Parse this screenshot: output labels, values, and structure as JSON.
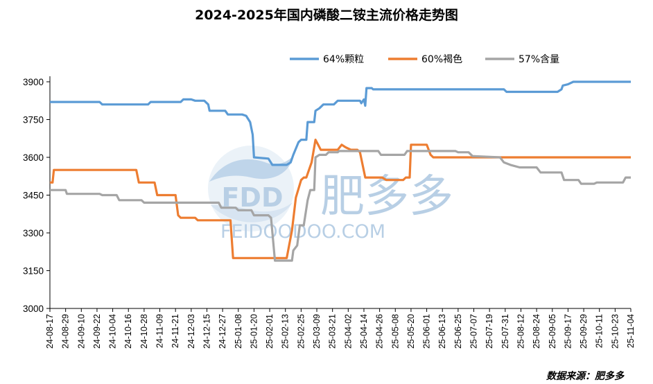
{
  "chart_data": {
    "type": "line",
    "title": "2024-2025年国内磷酸二铵主流价格走势图",
    "source": "数据来源：肥多多",
    "ylim": [
      3000,
      3900
    ],
    "yticks": [
      3000,
      3150,
      3300,
      3450,
      3600,
      3750,
      3900
    ],
    "x_range": [
      "24-08-17",
      "25-11-04"
    ],
    "xticks": [
      "24-08-17",
      "24-08-29",
      "24-09-10",
      "24-09-22",
      "24-10-04",
      "24-10-16",
      "24-10-28",
      "24-11-09",
      "24-11-21",
      "24-12-03",
      "24-12-15",
      "24-12-27",
      "25-01-08",
      "25-01-20",
      "25-02-01",
      "25-02-13",
      "25-02-25",
      "25-03-09",
      "25-03-21",
      "25-04-02",
      "25-04-14",
      "25-04-26",
      "25-05-08",
      "25-05-20",
      "25-06-01",
      "25-06-13",
      "25-06-25",
      "25-07-07",
      "25-07-19",
      "25-07-31",
      "25-08-12",
      "25-08-24",
      "25-09-05",
      "25-09-17",
      "25-09-29",
      "25-10-11",
      "25-10-23",
      "25-11-04"
    ],
    "grid": false,
    "legend_position": "top-right",
    "series": [
      {
        "name": "64%颗粒",
        "color": "#5b9bd5",
        "points": [
          [
            "2024-08-17",
            3820
          ],
          [
            "2024-09-24",
            3820
          ],
          [
            "2024-09-26",
            3810
          ],
          [
            "2024-10-31",
            3810
          ],
          [
            "2024-11-02",
            3820
          ],
          [
            "2024-11-25",
            3820
          ],
          [
            "2024-11-27",
            3830
          ],
          [
            "2024-12-03",
            3830
          ],
          [
            "2024-12-06",
            3825
          ],
          [
            "2024-12-13",
            3825
          ],
          [
            "2024-12-16",
            3810
          ],
          [
            "2024-12-17",
            3785
          ],
          [
            "2024-12-29",
            3785
          ],
          [
            "2024-12-31",
            3770
          ],
          [
            "2025-01-11",
            3770
          ],
          [
            "2025-01-14",
            3765
          ],
          [
            "2025-01-17",
            3740
          ],
          [
            "2025-01-19",
            3690
          ],
          [
            "2025-01-20",
            3600
          ],
          [
            "2025-01-31",
            3595
          ],
          [
            "2025-02-03",
            3570
          ],
          [
            "2025-02-14",
            3570
          ],
          [
            "2025-02-17",
            3580
          ],
          [
            "2025-02-19",
            3610
          ],
          [
            "2025-02-23",
            3660
          ],
          [
            "2025-02-25",
            3670
          ],
          [
            "2025-03-01",
            3670
          ],
          [
            "2025-03-02",
            3740
          ],
          [
            "2025-03-07",
            3740
          ],
          [
            "2025-03-08",
            3785
          ],
          [
            "2025-03-11",
            3795
          ],
          [
            "2025-03-14",
            3810
          ],
          [
            "2025-03-22",
            3810
          ],
          [
            "2025-03-25",
            3825
          ],
          [
            "2025-04-11",
            3825
          ],
          [
            "2025-04-12",
            3815
          ],
          [
            "2025-04-14",
            3830
          ],
          [
            "2025-04-15",
            3805
          ],
          [
            "2025-04-16",
            3875
          ],
          [
            "2025-04-20",
            3875
          ],
          [
            "2025-04-21",
            3870
          ],
          [
            "2025-07-30",
            3870
          ],
          [
            "2025-08-01",
            3860
          ],
          [
            "2025-09-09",
            3860
          ],
          [
            "2025-09-12",
            3870
          ],
          [
            "2025-09-13",
            3885
          ],
          [
            "2025-09-17",
            3890
          ],
          [
            "2025-09-21",
            3900
          ],
          [
            "2025-11-04",
            3900
          ]
        ]
      },
      {
        "name": "60%褐色",
        "color": "#ed7d31",
        "points": [
          [
            "2024-08-17",
            3500
          ],
          [
            "2024-08-19",
            3500
          ],
          [
            "2024-08-20",
            3550
          ],
          [
            "2024-10-22",
            3550
          ],
          [
            "2024-10-24",
            3500
          ],
          [
            "2024-11-05",
            3500
          ],
          [
            "2024-11-07",
            3450
          ],
          [
            "2024-11-21",
            3450
          ],
          [
            "2024-11-23",
            3370
          ],
          [
            "2024-11-25",
            3360
          ],
          [
            "2024-12-06",
            3360
          ],
          [
            "2024-12-08",
            3350
          ],
          [
            "2025-01-02",
            3350
          ],
          [
            "2025-01-04",
            3200
          ],
          [
            "2025-02-11",
            3200
          ],
          [
            "2025-02-14",
            3200
          ],
          [
            "2025-02-18",
            3310
          ],
          [
            "2025-02-21",
            3440
          ],
          [
            "2025-02-25",
            3510
          ],
          [
            "2025-02-27",
            3520
          ],
          [
            "2025-03-01",
            3520
          ],
          [
            "2025-03-05",
            3580
          ],
          [
            "2025-03-08",
            3670
          ],
          [
            "2025-03-09",
            3660
          ],
          [
            "2025-03-10",
            3650
          ],
          [
            "2025-03-12",
            3630
          ],
          [
            "2025-03-25",
            3630
          ],
          [
            "2025-03-28",
            3650
          ],
          [
            "2025-03-31",
            3640
          ],
          [
            "2025-04-04",
            3630
          ],
          [
            "2025-04-09",
            3630
          ],
          [
            "2025-04-11",
            3620
          ],
          [
            "2025-04-15",
            3520
          ],
          [
            "2025-04-28",
            3520
          ],
          [
            "2025-05-01",
            3510
          ],
          [
            "2025-05-14",
            3510
          ],
          [
            "2025-05-16",
            3520
          ],
          [
            "2025-05-19",
            3520
          ],
          [
            "2025-05-20",
            3650
          ],
          [
            "2025-06-01",
            3650
          ],
          [
            "2025-06-04",
            3610
          ],
          [
            "2025-06-06",
            3600
          ],
          [
            "2025-11-04",
            3600
          ]
        ]
      },
      {
        "name": "57%含量",
        "color": "#a5a5a5",
        "points": [
          [
            "2024-08-17",
            3470
          ],
          [
            "2024-08-29",
            3470
          ],
          [
            "2024-08-30",
            3455
          ],
          [
            "2024-09-24",
            3455
          ],
          [
            "2024-09-26",
            3450
          ],
          [
            "2024-10-07",
            3450
          ],
          [
            "2024-10-09",
            3430
          ],
          [
            "2024-10-26",
            3430
          ],
          [
            "2024-10-28",
            3420
          ],
          [
            "2024-12-24",
            3420
          ],
          [
            "2024-12-26",
            3400
          ],
          [
            "2025-01-06",
            3400
          ],
          [
            "2025-01-08",
            3390
          ],
          [
            "2025-01-18",
            3390
          ],
          [
            "2025-01-20",
            3370
          ],
          [
            "2025-01-31",
            3370
          ],
          [
            "2025-02-02",
            3360
          ],
          [
            "2025-02-05",
            3190
          ],
          [
            "2025-02-18",
            3190
          ],
          [
            "2025-02-19",
            3230
          ],
          [
            "2025-02-22",
            3250
          ],
          [
            "2025-02-24",
            3330
          ],
          [
            "2025-02-27",
            3330
          ],
          [
            "2025-03-02",
            3430
          ],
          [
            "2025-03-04",
            3470
          ],
          [
            "2025-03-07",
            3470
          ],
          [
            "2025-03-08",
            3600
          ],
          [
            "2025-03-11",
            3610
          ],
          [
            "2025-03-16",
            3610
          ],
          [
            "2025-03-18",
            3620
          ],
          [
            "2025-03-25",
            3620
          ],
          [
            "2025-03-26",
            3625
          ],
          [
            "2025-04-25",
            3625
          ],
          [
            "2025-04-27",
            3610
          ],
          [
            "2025-05-15",
            3610
          ],
          [
            "2025-05-17",
            3625
          ],
          [
            "2025-06-23",
            3625
          ],
          [
            "2025-06-25",
            3620
          ],
          [
            "2025-07-03",
            3620
          ],
          [
            "2025-07-06",
            3605
          ],
          [
            "2025-07-27",
            3600
          ],
          [
            "2025-07-30",
            3580
          ],
          [
            "2025-08-04",
            3570
          ],
          [
            "2025-08-11",
            3560
          ],
          [
            "2025-08-24",
            3560
          ],
          [
            "2025-08-27",
            3540
          ],
          [
            "2025-09-12",
            3540
          ],
          [
            "2025-09-14",
            3510
          ],
          [
            "2025-09-25",
            3510
          ],
          [
            "2025-09-27",
            3495
          ],
          [
            "2025-10-07",
            3495
          ],
          [
            "2025-10-09",
            3500
          ],
          [
            "2025-10-29",
            3500
          ],
          [
            "2025-10-31",
            3520
          ],
          [
            "2025-11-04",
            3520
          ]
        ]
      }
    ]
  },
  "watermark": {
    "logo_text": "FDD",
    "brand_text": "肥多多",
    "url_text": "FEIDOODOO.COM"
  }
}
